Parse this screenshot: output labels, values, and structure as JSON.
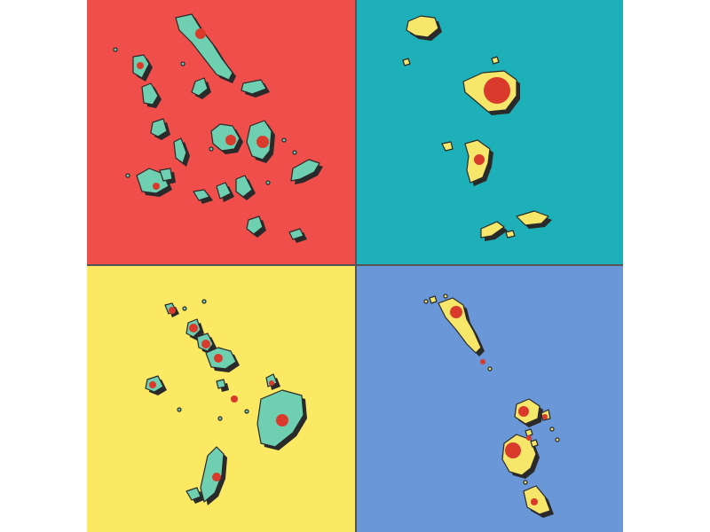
{
  "panels": [
    {
      "id": "top-left",
      "background": "#f04e4a",
      "land": "#6ecfb1",
      "marker": "#d93a2b",
      "outline": "#2a2a2a"
    },
    {
      "id": "top-right",
      "background": "#1eb0b8",
      "land": "#f6e76b",
      "marker": "#d93a2b",
      "outline": "#2a2a2a"
    },
    {
      "id": "bottom-left",
      "background": "#fbe964",
      "land": "#6ecfb1",
      "marker": "#d93a2b",
      "outline": "#2a2a2a"
    },
    {
      "id": "bottom-right",
      "background": "#6a97d8",
      "land": "#f6e76b",
      "marker": "#d93a2b",
      "outline": "#2a2a2a"
    }
  ],
  "divider_color": "#555555"
}
